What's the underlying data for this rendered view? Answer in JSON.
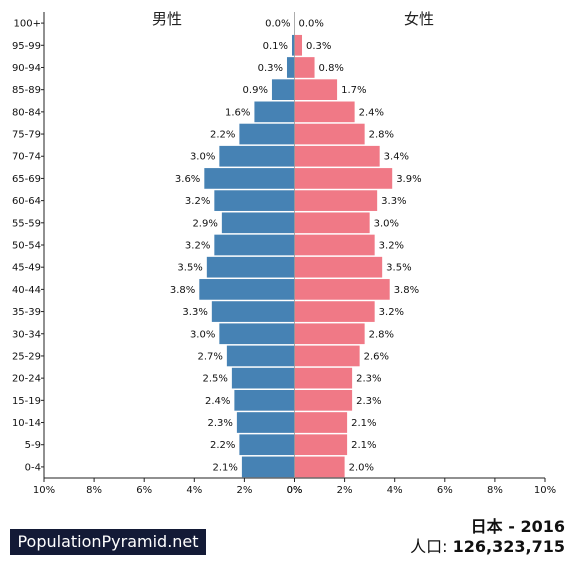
{
  "header": {
    "male_label": "男性",
    "female_label": "女性"
  },
  "footer": {
    "brand": "PopulationPyramid.net",
    "country_year": "日本 - 2016",
    "population_label": "人口:",
    "population_value": "126,323,715"
  },
  "colors": {
    "male": "#4682b4",
    "female": "#f07986"
  },
  "chart_data": {
    "type": "bar",
    "orientation": "horizontal",
    "categories": [
      "100+",
      "95-99",
      "90-94",
      "85-89",
      "80-84",
      "75-79",
      "70-74",
      "65-69",
      "60-64",
      "55-59",
      "50-54",
      "45-49",
      "40-44",
      "35-39",
      "30-34",
      "25-29",
      "20-24",
      "15-19",
      "10-14",
      "5-9",
      "0-4"
    ],
    "series": [
      {
        "name": "男性",
        "values": [
          0.0,
          0.1,
          0.3,
          0.9,
          1.6,
          2.2,
          3.0,
          3.6,
          3.2,
          2.9,
          3.2,
          3.5,
          3.8,
          3.3,
          3.0,
          2.7,
          2.5,
          2.4,
          2.3,
          2.2,
          2.1
        ],
        "labels": [
          "0.0%",
          "0.1%",
          "0.3%",
          "0.9%",
          "1.6%",
          "2.2%",
          "3.0%",
          "3.6%",
          "3.2%",
          "2.9%",
          "3.2%",
          "3.5%",
          "3.8%",
          "3.3%",
          "3.0%",
          "2.7%",
          "2.5%",
          "2.4%",
          "2.3%",
          "2.2%",
          "2.1%"
        ]
      },
      {
        "name": "女性",
        "values": [
          0.0,
          0.3,
          0.8,
          1.7,
          2.4,
          2.8,
          3.4,
          3.9,
          3.3,
          3.0,
          3.2,
          3.5,
          3.8,
          3.2,
          2.8,
          2.6,
          2.3,
          2.3,
          2.1,
          2.1,
          2.0
        ],
        "labels": [
          "0.0%",
          "0.3%",
          "0.8%",
          "1.7%",
          "2.4%",
          "2.8%",
          "3.4%",
          "3.9%",
          "3.3%",
          "3.0%",
          "3.2%",
          "3.5%",
          "3.8%",
          "3.2%",
          "2.8%",
          "2.6%",
          "2.3%",
          "2.3%",
          "2.1%",
          "2.1%",
          "2.0%"
        ]
      }
    ],
    "x_ticks_left": [
      "10%",
      "8%",
      "6%",
      "4%",
      "2%",
      "0%"
    ],
    "x_ticks_right": [
      "0%",
      "2%",
      "4%",
      "6%",
      "8%",
      "10%"
    ],
    "xlim": [
      0,
      10
    ],
    "grid": false
  }
}
